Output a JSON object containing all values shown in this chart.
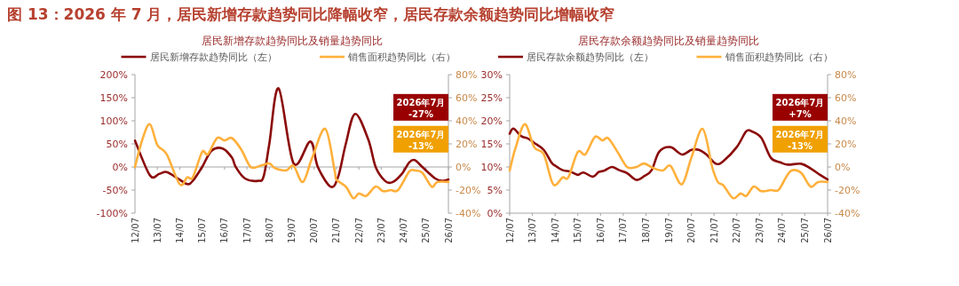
{
  "chart_data": [
    {
      "type": "line",
      "title": "图 13：2026 年 7 月，居民新增存款趋势同比降幅收窄，居民存款余额趋势同比增幅收窄",
      "subtitle": "居民新增存款趋势同比及销量趋势同比",
      "legend": "top",
      "xlim": [
        "2012-07",
        "2026-07"
      ],
      "xticks": [
        {
          "value": "2012-07",
          "label": "12/07"
        },
        {
          "value": "2013-07",
          "label": "13/07"
        },
        {
          "value": "2014-07",
          "label": "14/07"
        },
        {
          "value": "2015-07",
          "label": "15/07"
        },
        {
          "value": "2016-07",
          "label": "16/07"
        },
        {
          "value": "2017-07",
          "label": "17/07"
        },
        {
          "value": "2018-07",
          "label": "18/07"
        },
        {
          "value": "2019-07",
          "label": "19/07"
        },
        {
          "value": "2020-07",
          "label": "20/07"
        },
        {
          "value": "2021-07",
          "label": "21/07"
        },
        {
          "value": "2022-07",
          "label": "22/07"
        },
        {
          "value": "2023-07",
          "label": "23/07"
        },
        {
          "value": "2024-07",
          "label": "24/07"
        },
        {
          "value": "2025-07",
          "label": "25/07"
        },
        {
          "value": "2026-07",
          "label": "26/07"
        }
      ],
      "ylim": [
        -100,
        200
      ],
      "yticks": [
        {
          "value": -100,
          "label": "-100%"
        },
        {
          "value": -50,
          "label": "-50%"
        },
        {
          "value": 0,
          "label": "0%"
        },
        {
          "value": 50,
          "label": "50%"
        },
        {
          "value": 100,
          "label": "100%"
        },
        {
          "value": 150,
          "label": "150%"
        },
        {
          "value": 200,
          "label": "200%"
        }
      ],
      "y2lim": [
        -40,
        80
      ],
      "y2ticks": [
        {
          "value": -40,
          "label": "-40%"
        },
        {
          "value": -20,
          "label": "-20%"
        },
        {
          "value": 0,
          "label": "0%"
        },
        {
          "value": 20,
          "label": "20%"
        },
        {
          "value": 40,
          "label": "40%"
        },
        {
          "value": 60,
          "label": "60%"
        },
        {
          "value": 80,
          "label": "80%"
        }
      ],
      "annotations": [
        "2026年7月 -27%",
        "2026年7月 -13%"
      ],
      "series": [
        {
          "name": "居民新增存款趋势同比（左）",
          "color": "#8b0a0a",
          "x": [
            "2012-07",
            "2013-03",
            "2013-08",
            "2013-12",
            "2014-06",
            "2014-11",
            "2015-02",
            "2015-07",
            "2015-12",
            "2016-06",
            "2016-11",
            "2017-01",
            "2017-06",
            "2018-01",
            "2018-04",
            "2018-07",
            "2018-12",
            "2019-08",
            "2020-05",
            "2020-09",
            "2021-04",
            "2021-08",
            "2021-12",
            "2022-05",
            "2022-12",
            "2023-04",
            "2023-09",
            "2024-01",
            "2024-06",
            "2024-10",
            "2025-01",
            "2025-05",
            "2025-12",
            "2026-04",
            "2026-07"
          ],
          "values": [
            57,
            -18,
            -15,
            -11,
            -25,
            -37,
            -30,
            0,
            35,
            40,
            20,
            0,
            -25,
            -30,
            -20,
            50,
            170,
            8,
            55,
            0,
            -43,
            -20,
            50,
            115,
            60,
            0,
            -30,
            -33,
            -15,
            10,
            15,
            0,
            -25,
            -30,
            -27
          ]
        },
        {
          "name": "销售面积趋势同比（右）",
          "color": "#ffb03b",
          "axis": "y2",
          "x": [
            "2012-07",
            "2012-11",
            "2013-03",
            "2013-07",
            "2013-12",
            "2014-07",
            "2014-11",
            "2015-02",
            "2015-07",
            "2015-10",
            "2016-03",
            "2016-07",
            "2016-11",
            "2017-04",
            "2017-09",
            "2018-02",
            "2018-07",
            "2018-10",
            "2019-04",
            "2019-08",
            "2020-01",
            "2020-06",
            "2021-01",
            "2021-06",
            "2021-07",
            "2021-12",
            "2022-04",
            "2022-07",
            "2022-11",
            "2023-04",
            "2023-08",
            "2023-12",
            "2024-04",
            "2024-10",
            "2025-01",
            "2025-05",
            "2025-10",
            "2026-01",
            "2026-07"
          ],
          "values": [
            0,
            24,
            37,
            19,
            11,
            -15,
            -9,
            -9,
            13,
            11,
            25,
            23,
            25,
            15,
            0,
            1,
            3,
            -1,
            -3,
            1,
            -13,
            8,
            33,
            -3,
            -11,
            -17,
            -27,
            -23,
            -25,
            -17,
            -21,
            -20,
            -20,
            -4,
            -3,
            -5,
            -17,
            -13,
            -13
          ]
        }
      ]
    },
    {
      "type": "line",
      "subtitle": "居民存款余额趋势同比及销量趋势同比",
      "legend": "top",
      "xlim": [
        "2012-07",
        "2026-07"
      ],
      "xticks": [
        {
          "value": "2012-07",
          "label": "12/07"
        },
        {
          "value": "2013-07",
          "label": "13/07"
        },
        {
          "value": "2014-07",
          "label": "14/07"
        },
        {
          "value": "2015-07",
          "label": "15/07"
        },
        {
          "value": "2016-07",
          "label": "16/07"
        },
        {
          "value": "2017-07",
          "label": "17/07"
        },
        {
          "value": "2018-07",
          "label": "18/07"
        },
        {
          "value": "2019-07",
          "label": "19/07"
        },
        {
          "value": "2020-07",
          "label": "20/07"
        },
        {
          "value": "2021-07",
          "label": "21/07"
        },
        {
          "value": "2022-07",
          "label": "22/07"
        },
        {
          "value": "2023-07",
          "label": "23/07"
        },
        {
          "value": "2024-07",
          "label": "24/07"
        },
        {
          "value": "2025-07",
          "label": "25/07"
        },
        {
          "value": "2026-07",
          "label": "26/07"
        }
      ],
      "ylim": [
        0,
        30
      ],
      "yticks": [
        {
          "value": 0,
          "label": "0%"
        },
        {
          "value": 5,
          "label": "5%"
        },
        {
          "value": 10,
          "label": "10%"
        },
        {
          "value": 15,
          "label": "15%"
        },
        {
          "value": 20,
          "label": "20%"
        },
        {
          "value": 25,
          "label": "25%"
        },
        {
          "value": 30,
          "label": "30%"
        }
      ],
      "y2lim": [
        -40,
        80
      ],
      "y2ticks": [
        {
          "value": -40,
          "label": "-40%"
        },
        {
          "value": -20,
          "label": "-20%"
        },
        {
          "value": 0,
          "label": "0%"
        },
        {
          "value": 20,
          "label": "20%"
        },
        {
          "value": 40,
          "label": "40%"
        },
        {
          "value": 60,
          "label": "60%"
        },
        {
          "value": 80,
          "label": "80%"
        }
      ],
      "annotations": [
        "2026年7月 +7%",
        "2026年7月 -13%"
      ],
      "series": [
        {
          "name": "居民存款余额趋势同比（左）",
          "color": "#8b0a0a",
          "x": [
            "2012-07",
            "2012-09",
            "2013-01",
            "2013-05",
            "2013-08",
            "2014-01",
            "2014-05",
            "2014-07",
            "2014-11",
            "2015-03",
            "2015-07",
            "2015-10",
            "2016-03",
            "2016-06",
            "2016-09",
            "2017-01",
            "2017-05",
            "2017-09",
            "2018-02",
            "2018-06",
            "2018-10",
            "2019-02",
            "2019-08",
            "2020-02",
            "2020-07",
            "2020-11",
            "2021-03",
            "2021-08",
            "2021-12",
            "2022-07",
            "2022-12",
            "2023-03",
            "2023-08",
            "2024-01",
            "2024-06",
            "2024-10",
            "2025-05",
            "2025-10",
            "2026-03",
            "2026-07"
          ],
          "values": [
            17.2,
            18.3,
            16.7,
            16.1,
            15.2,
            13.7,
            11,
            10.3,
            9.3,
            9,
            8.3,
            8.8,
            7.9,
            8.9,
            9.2,
            10,
            9.3,
            8.7,
            7.2,
            8,
            9.3,
            13.3,
            14.3,
            12.7,
            13.7,
            13.7,
            12.7,
            10.7,
            11.3,
            14.3,
            17.7,
            17.7,
            16.3,
            12,
            11,
            10.5,
            10.7,
            9.7,
            8.3,
            7.3
          ]
        },
        {
          "name": "销售面积趋势同比（右）",
          "color": "#ffb03b",
          "axis": "y2",
          "x": [
            "2012-07",
            "2012-10",
            "2013-03",
            "2013-08",
            "2014-01",
            "2014-06",
            "2014-11",
            "2015-02",
            "2015-07",
            "2015-11",
            "2016-04",
            "2016-08",
            "2016-11",
            "2017-04",
            "2017-09",
            "2018-02",
            "2018-06",
            "2018-11",
            "2019-04",
            "2019-08",
            "2020-02",
            "2020-07",
            "2021-01",
            "2021-06",
            "2021-09",
            "2021-12",
            "2022-05",
            "2022-09",
            "2022-12",
            "2023-04",
            "2023-08",
            "2024-01",
            "2024-05",
            "2024-09",
            "2024-12",
            "2025-05",
            "2025-10",
            "2026-02",
            "2026-07"
          ],
          "values": [
            -3,
            16,
            37,
            17,
            11,
            -15,
            -9,
            -9,
            13,
            11,
            26,
            23,
            25,
            13,
            0,
            0,
            3,
            -1,
            -3,
            1,
            -15,
            8,
            33,
            0,
            -13,
            -16,
            -27,
            -23,
            -25,
            -17,
            -21,
            -20,
            -20,
            -9,
            -3,
            -5,
            -17,
            -13,
            -13
          ]
        }
      ]
    }
  ]
}
